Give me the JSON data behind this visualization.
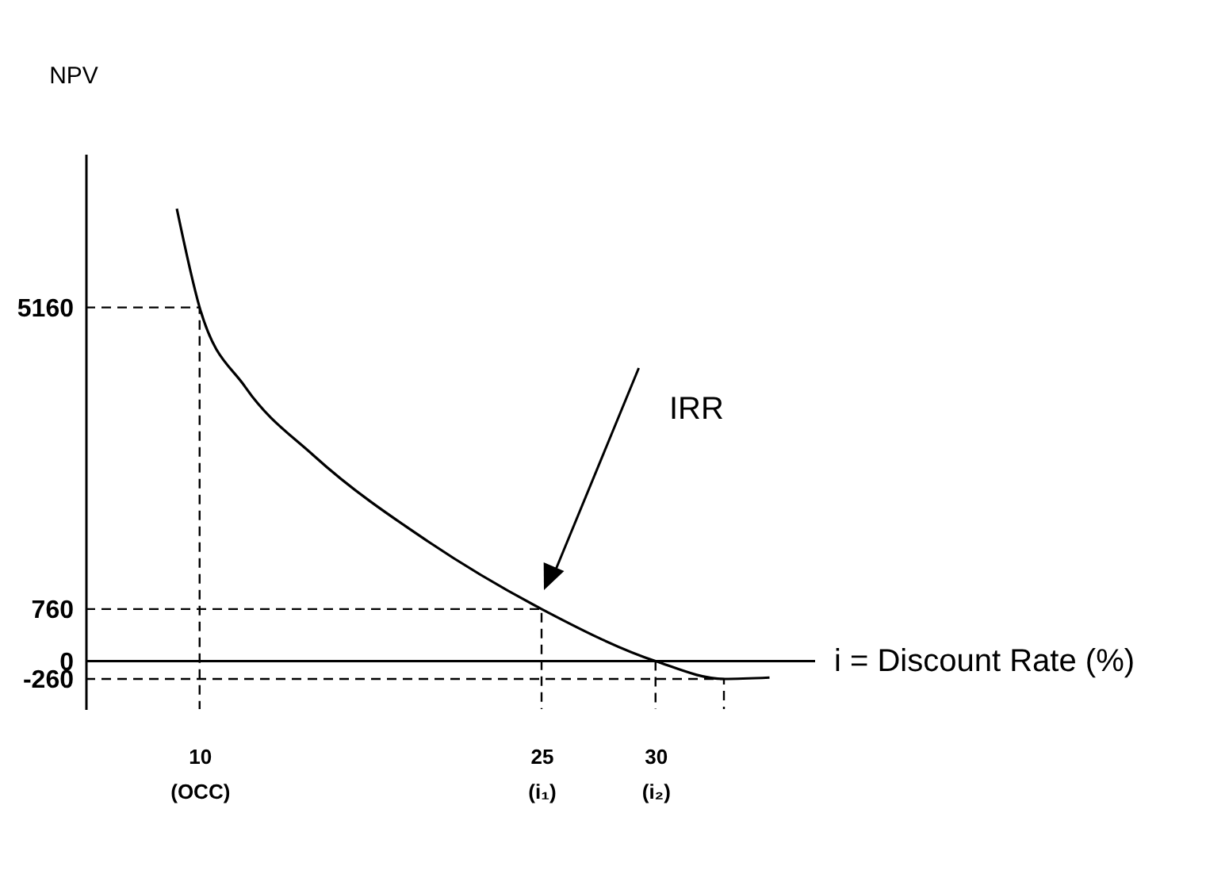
{
  "chart_data": {
    "type": "line",
    "ylabel": "NPV",
    "xlabel": "i = Discount Rate (%)",
    "x": [
      9,
      10,
      12,
      15,
      20,
      25,
      30,
      33,
      35
    ],
    "series": [
      {
        "color": "#000000",
        "values": [
          6600,
          5160,
          4000,
          3000,
          1750,
          760,
          0,
          -260,
          -240
        ]
      },
      {
        "color": "#000000",
        "line_style": "dashed",
        "x": [
          5,
          10,
          10
        ],
        "values": [
          5160,
          5160,
          -700
        ]
      },
      {
        "color": "#000000",
        "line_style": "dashed",
        "x": [
          5,
          25,
          25
        ],
        "values": [
          760,
          760,
          -700
        ]
      },
      {
        "color": "#000000",
        "line_style": "dashed",
        "x": [
          30,
          30
        ],
        "values": [
          0,
          -700
        ]
      },
      {
        "color": "#000000",
        "line_style": "dashed",
        "x": [
          5,
          33,
          33
        ],
        "values": [
          -260,
          -260,
          -700
        ]
      }
    ],
    "xlim": [
      5,
      37
    ],
    "xticks": [
      {
        "value": 10,
        "label": "10\n(OCC)"
      },
      {
        "value": 25,
        "label": "25\n(i₁)"
      },
      {
        "value": 30,
        "label": "30\n(i₂)"
      }
    ],
    "ylim": [
      -700,
      7400
    ],
    "yticks": [
      -260,
      0,
      760,
      5160
    ],
    "ref_lines": [
      {
        "axis": "y",
        "value": 0
      }
    ],
    "annotations": [
      "IRR"
    ],
    "marker": "none",
    "line_style": "solid"
  }
}
